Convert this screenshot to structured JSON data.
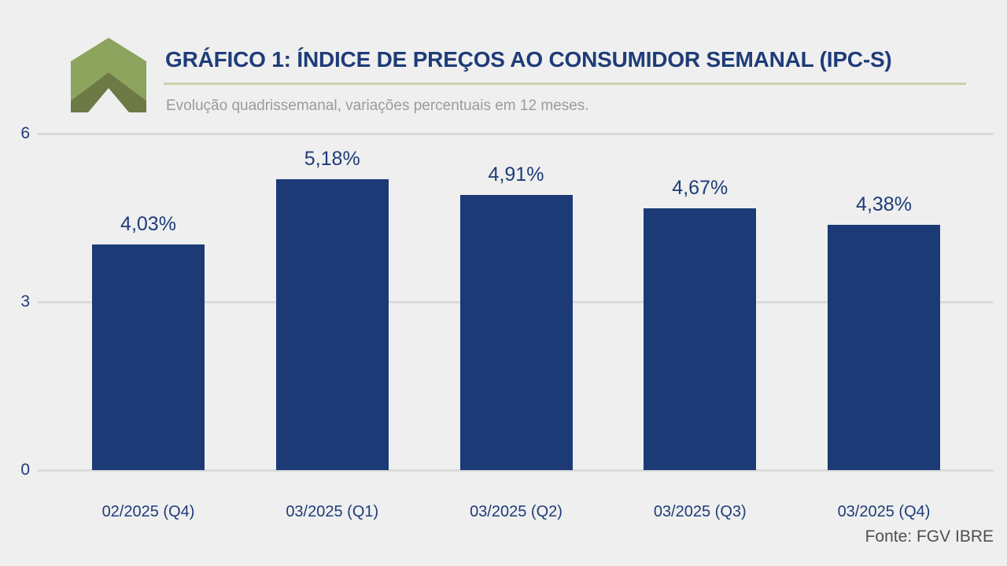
{
  "colors": {
    "background": "#efefef",
    "navy_text": "#1e3c78",
    "bar": "#1b3a76",
    "gridline": "#dadada",
    "divider_green": "#c9d4a8",
    "subtitle_gray": "#9b9b9b",
    "source_gray": "#4f4f4f",
    "logo_light_green": "#8ca45d",
    "logo_dark_green": "#6d7a46"
  },
  "header": {
    "logo_icon": "double-chevron-up-icon",
    "title": "GRÁFICO 1: ÍNDICE DE PREÇOS AO CONSUMIDOR SEMANAL (IPC-S)",
    "subtitle": "Evolução quadrissemanal, variações percentuais em 12 meses."
  },
  "footer": {
    "source": "Fonte: FGV IBRE"
  },
  "chart_data": {
    "type": "bar",
    "title": "GRÁFICO 1: ÍNDICE DE PREÇOS AO CONSUMIDOR SEMANAL (IPC-S)",
    "subtitle": "Evolução quadrissemanal, variações percentuais em 12 meses.",
    "categories": [
      "02/2025 (Q4)",
      "03/2025 (Q1)",
      "03/2025 (Q2)",
      "03/2025 (Q3)",
      "03/2025 (Q4)"
    ],
    "values": [
      4.03,
      5.18,
      4.91,
      4.67,
      4.38
    ],
    "value_labels": [
      "4,03%",
      "5,18%",
      "4,91%",
      "4,67%",
      "4,38%"
    ],
    "xlabel": "",
    "ylabel": "",
    "ylim": [
      0,
      6
    ],
    "yticks": [
      0,
      3,
      6
    ],
    "grid": "horizontal",
    "legend": "none",
    "bar_color": "#1b3a76",
    "source": "Fonte: FGV IBRE"
  }
}
